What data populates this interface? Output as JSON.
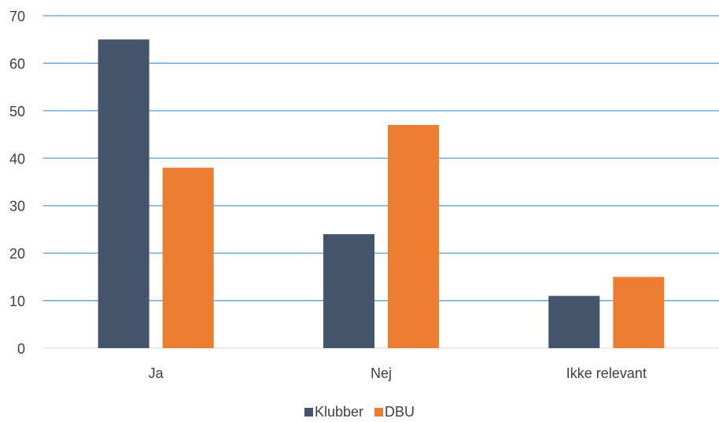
{
  "chart_data": {
    "type": "bar",
    "categories": [
      "Ja",
      "Nej",
      "Ikke relevant"
    ],
    "series": [
      {
        "name": "Klubber",
        "values": [
          65,
          24,
          11
        ],
        "color": "#44546a"
      },
      {
        "name": "DBU",
        "values": [
          38,
          47,
          15
        ],
        "color": "#ed7d31"
      }
    ],
    "ylim": [
      0,
      70
    ],
    "yticks": [
      0,
      10,
      20,
      30,
      40,
      50,
      60,
      70
    ],
    "grid": true,
    "grid_color": "#5b9bd5",
    "legend_position": "bottom-center"
  }
}
